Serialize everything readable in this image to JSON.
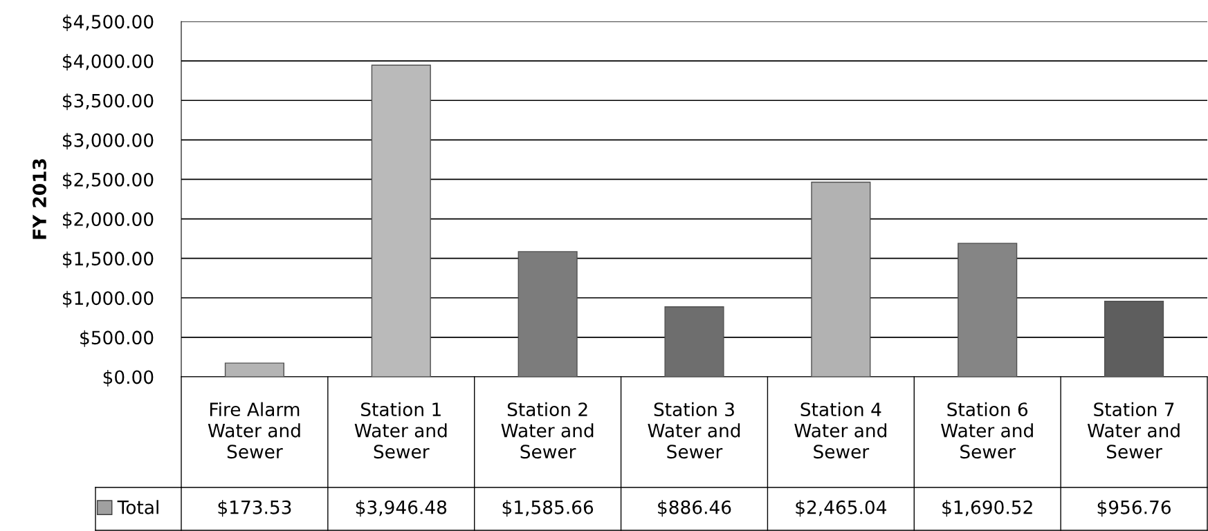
{
  "chart_data": {
    "type": "bar",
    "ylabel": "FY 2013",
    "categories": [
      "Fire Alarm\nWater and\nSewer",
      "Station 1\nWater and\nSewer",
      "Station 2\nWater and\nSewer",
      "Station 3\nWater and\nSewer",
      "Station 4\nWater and\nSewer",
      "Station 6\nWater and\nSewer",
      "Station 7\nWater and\nSewer"
    ],
    "series": [
      {
        "name": "Total",
        "color": "#a0a0a0",
        "colors": [
          "#b4b4b4",
          "#bababa",
          "#7c7c7c",
          "#6e6e6e",
          "#b2b2b2",
          "#858585",
          "#5e5e5e"
        ],
        "values": [
          173.53,
          3946.48,
          1585.66,
          886.46,
          2465.04,
          1690.52,
          956.76
        ],
        "value_labels": [
          "$173.53",
          "$3,946.48",
          "$1,585.66",
          "$886.46",
          "$2,465.04",
          "$1,690.52",
          "$956.76"
        ]
      }
    ],
    "ylim": [
      0,
      4500
    ],
    "yticks": [
      {
        "value": 0,
        "label": "$0.00"
      },
      {
        "value": 500,
        "label": "$500.00"
      },
      {
        "value": 1000,
        "label": "$1,000.00"
      },
      {
        "value": 1500,
        "label": "$1,500.00"
      },
      {
        "value": 2000,
        "label": "$2,000.00"
      },
      {
        "value": 2500,
        "label": "$2,500.00"
      },
      {
        "value": 3000,
        "label": "$3,000.00"
      },
      {
        "value": 3500,
        "label": "$3,500.00"
      },
      {
        "value": 4000,
        "label": "$4,000.00"
      },
      {
        "value": 4500,
        "label": "$4,500.00"
      }
    ],
    "grid": "y",
    "legend": "bottom"
  }
}
